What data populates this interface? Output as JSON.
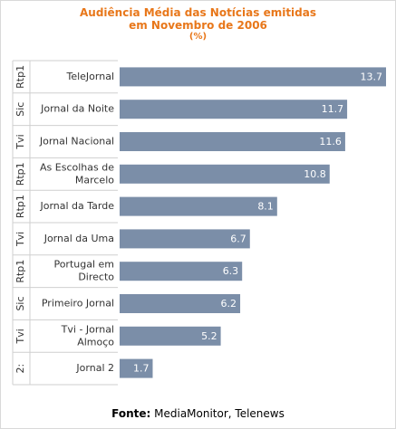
{
  "title_line1": "Audiência Média das Notícias emitidas",
  "title_line2": "em Novembro de 2006",
  "title_line3": "(%)",
  "source_label": "Fonte:",
  "source_text": "MediaMonitor, Telenews",
  "colors": {
    "bar": "#7b8ea8",
    "title": "#e8771a",
    "divider": "#cfcfcf",
    "value_text": "#ffffff"
  },
  "chart_data": {
    "type": "bar",
    "orientation": "horizontal",
    "title": "Audiência Média das Notícias emitidas em Novembro de 2006 (%)",
    "groups": [
      "Rtp1",
      "Sic",
      "Tvi",
      "Rtp1",
      "Rtp1",
      "Tvi",
      "Rtp1",
      "Sic",
      "Tvi",
      "2:"
    ],
    "categories": [
      [
        "TeleJornal"
      ],
      [
        "Jornal da Noite"
      ],
      [
        "Jornal Nacional"
      ],
      [
        "As Escolhas de",
        "Marcelo"
      ],
      [
        "Jornal da Tarde"
      ],
      [
        "Jornal da Uma"
      ],
      [
        "Portugal em",
        "Directo"
      ],
      [
        "Primeiro Jornal"
      ],
      [
        "Tvi - Jornal",
        "Almoço"
      ],
      [
        "Jornal 2"
      ]
    ],
    "values": [
      13.7,
      11.7,
      11.6,
      10.8,
      8.1,
      6.7,
      6.3,
      6.2,
      5.2,
      1.7
    ],
    "xlim": [
      0,
      13.7
    ],
    "grid": false,
    "legend": "none"
  }
}
